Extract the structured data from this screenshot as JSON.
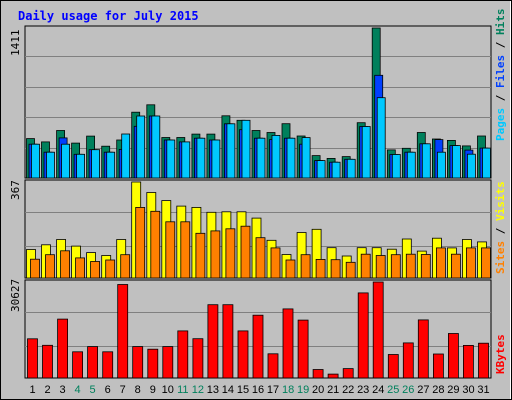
{
  "chart_data": {
    "type": "bar",
    "title": "Daily usage for July 2015",
    "categories": [
      "1",
      "2",
      "3",
      "4",
      "5",
      "6",
      "7",
      "8",
      "9",
      "10",
      "11",
      "12",
      "13",
      "14",
      "15",
      "16",
      "17",
      "18",
      "19",
      "20",
      "21",
      "22",
      "23",
      "24",
      "25",
      "26",
      "27",
      "28",
      "29",
      "30",
      "31"
    ],
    "weekend_days": [
      "4",
      "5",
      "11",
      "12",
      "18",
      "19",
      "25",
      "26"
    ],
    "panels": {
      "top": {
        "ymax_label": "1411",
        "ymax": 1411,
        "legend": [
          "Pages",
          "Files",
          "Hits"
        ],
        "series": [
          {
            "name": "Hits",
            "color": "#00805c",
            "values": [
              371,
              340,
              447,
              328,
              394,
              299,
              357,
              619,
              689,
              381,
              381,
              413,
              413,
              585,
              543,
              447,
              428,
              511,
              395,
              211,
              184,
              201,
              520,
              1411,
              264,
              279,
              428,
              367,
              354,
              302,
              395
            ]
          },
          {
            "name": "Files",
            "color": "#0040ff",
            "values": [
              318,
              243,
              377,
              223,
              266,
              243,
              269,
              486,
              583,
              357,
              340,
              374,
              357,
              510,
              454,
              374,
              361,
              374,
              318,
              164,
              149,
              176,
              484,
              966,
              221,
              243,
              322,
              361,
              305,
              262,
              281
            ]
          },
          {
            "name": "Pages",
            "color": "#00c8ff",
            "values": [
              318,
              243,
              318,
              223,
              266,
              243,
              414,
              583,
              583,
              357,
              340,
              374,
              357,
              510,
              543,
              374,
              401,
              374,
              380,
              164,
              149,
              176,
              484,
              755,
              221,
              243,
              322,
              243,
              305,
              224,
              281
            ]
          }
        ]
      },
      "middle": {
        "ymax_label": "367",
        "ymax": 367,
        "legend": [
          "Visits",
          "Sites"
        ],
        "series": [
          {
            "name": "Visits",
            "color": "#ffff00",
            "values": [
              109,
              127,
              147,
              122,
              97,
              86,
              147,
              367,
              327,
              296,
              275,
              270,
              251,
              253,
              253,
              229,
              144,
              90,
              174,
              186,
              116,
              84,
              116,
              116,
              110,
              149,
              103,
              152,
              115,
              147,
              138
            ]
          },
          {
            "name": "Sites",
            "color": "#ff8000",
            "values": [
              72,
              89,
              104,
              77,
              63,
              69,
              89,
              270,
              255,
              215,
              215,
              171,
              180,
              188,
              198,
              154,
              115,
              69,
              89,
              71,
              70,
              60,
              91,
              86,
              89,
              91,
              90,
              115,
              91,
              115,
              115
            ]
          }
        ]
      },
      "bottom": {
        "ymax_label": "30627",
        "ymax": 30627,
        "legend": [
          "KBytes"
        ],
        "series": [
          {
            "name": "KBytes",
            "color": "#ff0000",
            "values": [
              12520,
              10440,
              18790,
              8350,
              10020,
              8350,
              29840,
              10010,
              9180,
              10020,
              15040,
              12530,
              23400,
              23380,
              15040,
              20050,
              7720,
              22050,
              18480,
              2700,
              1250,
              3010,
              27150,
              30627,
              7500,
              11190,
              18530,
              7670,
              14200,
              10410,
              11110
            ]
          }
        ]
      }
    }
  }
}
